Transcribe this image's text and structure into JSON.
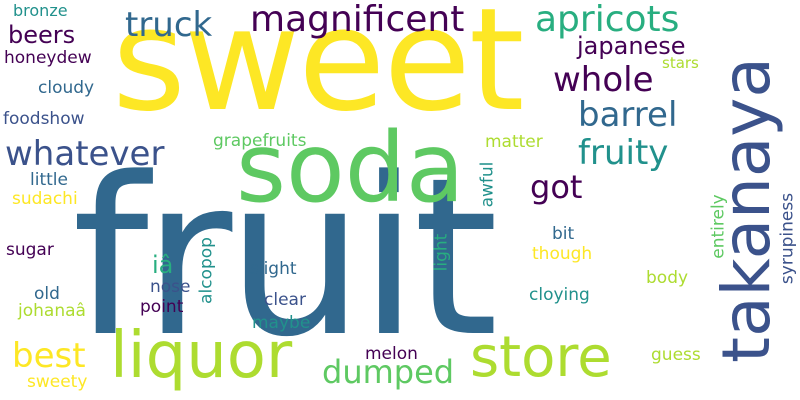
{
  "colors": {
    "background": "#ffffff",
    "dark_purple": "#440154",
    "indigo": "#3b528b",
    "blue": "#31688e",
    "teal": "#21918c",
    "green_teal": "#28ae80",
    "green": "#5ec962",
    "lime": "#addc30",
    "yellow": "#fde725"
  },
  "words": {
    "fruit": "fruit",
    "sweet": "sweet",
    "soda": "soda",
    "takanaya": "takanaya",
    "liquor": "liquor",
    "store": "store",
    "magnificent": "magnificent",
    "apricots": "apricots",
    "truck": "truck",
    "whatever": "whatever",
    "whole": "whole",
    "barrel": "barrel",
    "fruity": "fruity",
    "japanese": "japanese",
    "beers": "beers",
    "got": "got",
    "best": "best",
    "dumped": "dumped",
    "bronze": "bronze",
    "honeydew": "honeydew",
    "cloudy": "cloudy",
    "foodshow": "foodshow",
    "stars": "stars",
    "matter": "matter",
    "grapefruits": "grapefruits",
    "little": "little",
    "sudachi": "sudachi",
    "awful": "awful",
    "entirely": "entirely",
    "syrupiness": "syrupiness",
    "ia": "iâ",
    "alcopop": "alcopop",
    "light": "light",
    "bit": "bit",
    "sugar": "sugar",
    "though": "though",
    "slight": "slight",
    "nose": "nose",
    "body": "body",
    "old": "old",
    "johanaa": "johanaâ",
    "clear": "clear",
    "cloying": "cloying",
    "point": "point",
    "maybe": "maybe",
    "guess": "guess",
    "melon": "melon",
    "sweety": "sweety"
  }
}
